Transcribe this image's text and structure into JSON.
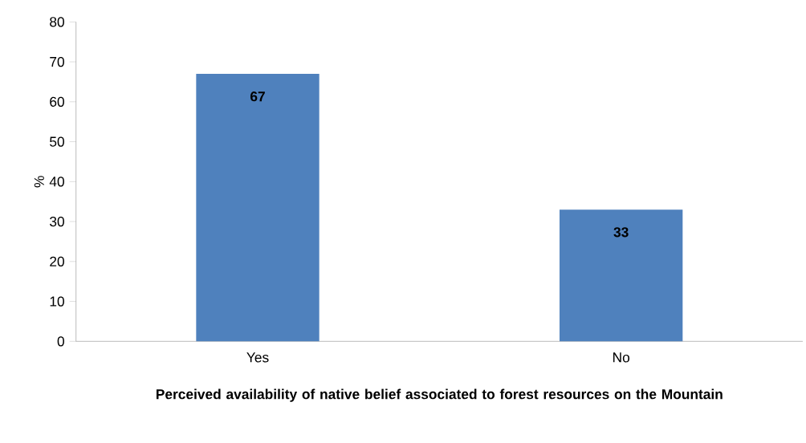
{
  "chart_data": {
    "type": "bar",
    "categories": [
      "Yes",
      "No"
    ],
    "values": [
      67,
      33
    ],
    "color": "#4f81bd",
    "data_labels": true,
    "ylabel": "%",
    "xlabel": "Perceived availability of native belief associated to forest resources on the Mountain",
    "ylim": [
      0,
      80
    ],
    "yticks": [
      0,
      10,
      20,
      30,
      40,
      50,
      60,
      70,
      80
    ],
    "grid": false
  }
}
